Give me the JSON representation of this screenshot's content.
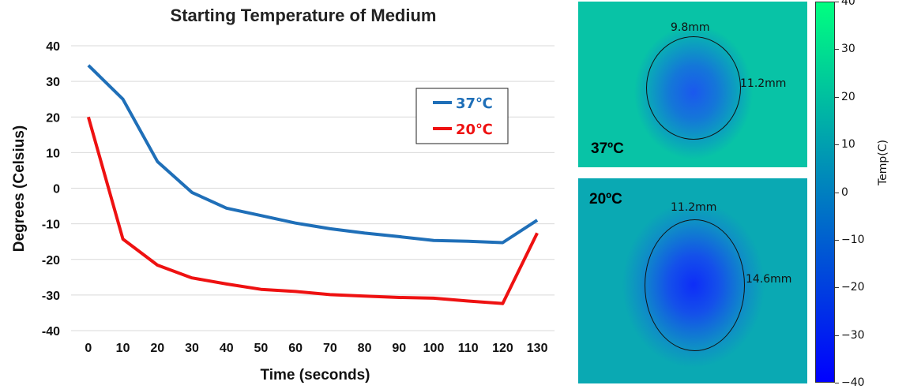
{
  "chart_data": {
    "type": "line",
    "title": "Starting Temperature of Medium",
    "xlabel": "Time (seconds)",
    "ylabel": "Degrees (Celsius)",
    "x": [
      0,
      10,
      20,
      30,
      40,
      50,
      60,
      70,
      80,
      90,
      100,
      110,
      120,
      130
    ],
    "ylim": [
      -40,
      40
    ],
    "yticks": [
      -40,
      -30,
      -20,
      -10,
      0,
      10,
      20,
      30,
      40
    ],
    "grid": "horizontal",
    "legend_position": "top-right",
    "series": [
      {
        "name": "37℃",
        "color": "#1f6fb8",
        "values": [
          34.5,
          25,
          7.5,
          -1.2,
          -5.6,
          -7.7,
          -9.8,
          -11.4,
          -12.6,
          -13.6,
          -14.7,
          -14.9,
          -15.3,
          -9
        ]
      },
      {
        "name": "20℃",
        "color": "#ee1111",
        "values": [
          20,
          -14.3,
          -21.6,
          -25.2,
          -26.9,
          -28.4,
          -29,
          -29.9,
          -30.3,
          -30.7,
          -30.9,
          -31.7,
          -32.4,
          -12.6
        ]
      }
    ]
  },
  "thermal_panels": [
    {
      "label": "37ºC",
      "width_label": "9.8mm",
      "height_label": "11.2mm"
    },
    {
      "label": "20ºC",
      "width_label": "11.2mm",
      "height_label": "14.6mm"
    }
  ],
  "colorbar": {
    "title": "Temp(C)",
    "min": -40,
    "max": 40,
    "ticks": [
      40,
      30,
      20,
      10,
      0,
      -10,
      -20,
      -30,
      -40
    ],
    "tick_labels": [
      "40",
      "30",
      "20",
      "10",
      "0",
      "−10",
      "−20",
      "−30",
      "−40"
    ],
    "color_low": "#0000ff",
    "color_high": "#00ff80"
  }
}
